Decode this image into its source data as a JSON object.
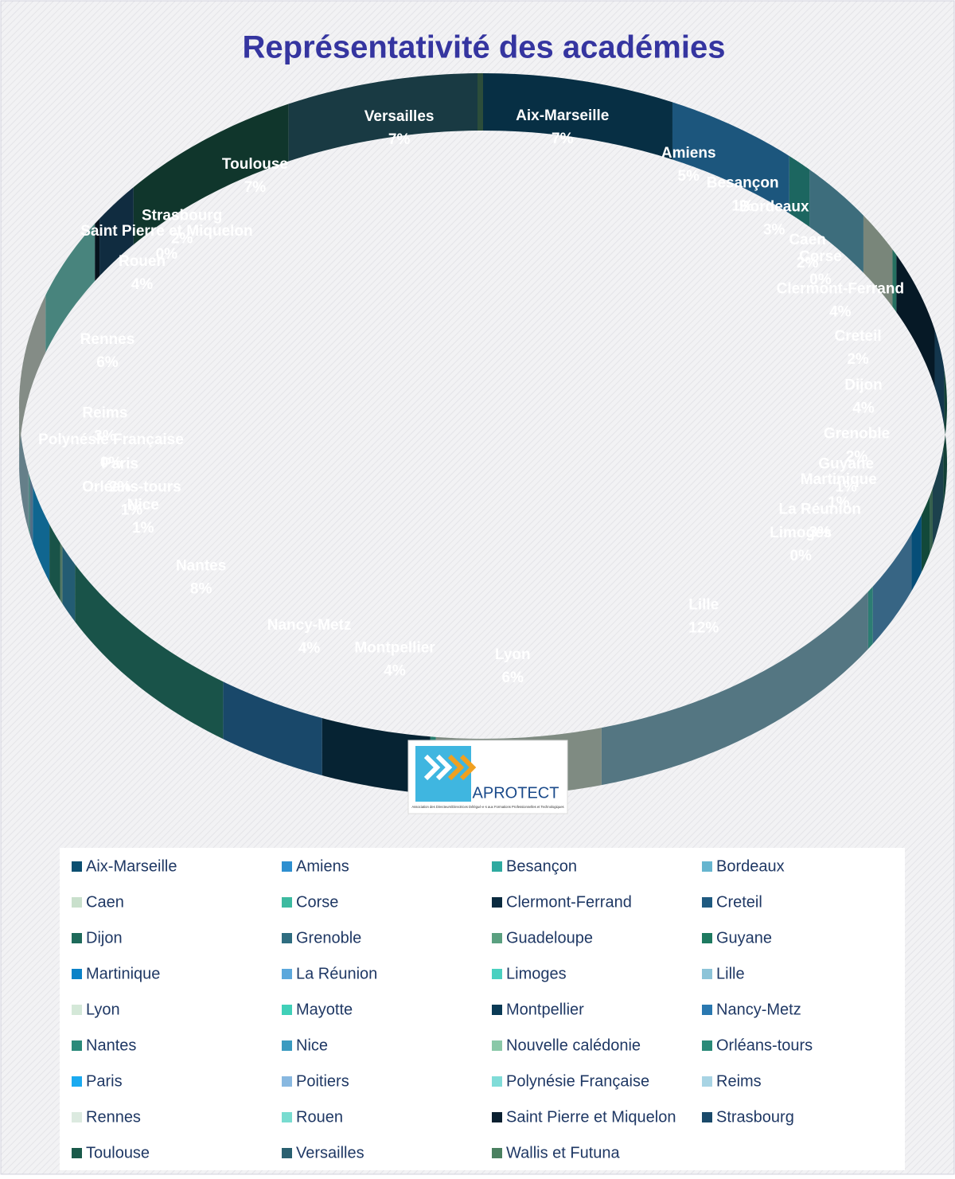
{
  "chart_data": {
    "type": "pie",
    "title": "Représentativité des académies",
    "categories": [
      "Aix-Marseille",
      "Amiens",
      "Besançon",
      "Bordeaux",
      "Caen",
      "Corse",
      "Clermont-Ferrand",
      "Creteil",
      "Dijon",
      "Grenoble",
      "Guadeloupe",
      "Guyane",
      "Martinique",
      "La Réunion",
      "Limoges",
      "Lille",
      "Lyon",
      "Mayotte",
      "Montpellier",
      "Nancy-Metz",
      "Nantes",
      "Nice",
      "Nouvelle calédonie",
      "Orléans-tours",
      "Paris",
      "Poitiers",
      "Polynésie Française",
      "Reims",
      "Rennes",
      "Rouen",
      "Saint Pierre et Miquelon",
      "Strasbourg",
      "Toulouse",
      "Versailles",
      "Wallis et Futuna"
    ],
    "values": [
      7,
      5,
      1,
      3,
      2,
      0.3,
      4,
      2,
      4,
      2,
      0.4,
      1,
      1,
      3,
      0.3,
      12,
      6,
      0.2,
      4,
      4,
      8,
      1,
      0.2,
      1,
      2,
      0.4,
      0.3,
      3,
      6,
      4,
      0.3,
      2,
      7,
      7,
      0.2
    ],
    "value_labels": [
      "7%",
      "5%",
      "1%",
      "3%",
      "2%",
      "0%",
      "4%",
      "2%",
      "4%",
      "2%",
      null,
      "1%",
      "1%",
      "3%",
      "0%",
      "12%",
      "6%",
      null,
      "4%",
      "4%",
      "8%",
      "1%",
      null,
      "1%",
      "2%",
      null,
      "0%",
      "3%",
      "6%",
      "4%",
      "0%",
      "2%",
      "7%",
      "7%",
      null
    ],
    "colors": [
      "#0b4f71",
      "#2e8fd0",
      "#2eaaa0",
      "#66b5cf",
      "#c9e0cc",
      "#3dbaa0",
      "#0a2a3f",
      "#1f5a80",
      "#1e6a5a",
      "#2f6d80",
      "#5aa080",
      "#1e7a60",
      "#0a82c8",
      "#5ca8dc",
      "#4ad0c0",
      "#8cc4d8",
      "#d4e8d8",
      "#40d0b8",
      "#0a3a55",
      "#2a78b0",
      "#2a8a7a",
      "#3a9ac0",
      "#8ac8a8",
      "#2a8a78",
      "#1aaaf0",
      "#88b8e0",
      "#80dcd8",
      "#a8d4e4",
      "#dceae0",
      "#78dcd0",
      "#0a2030",
      "#1a4a6a",
      "#1a5a4a",
      "#2a6070",
      "#4a8060"
    ],
    "legend": "bottom"
  },
  "logo": {
    "text": "APROTECT",
    "subtitle": "Association des Directeurs/Directrices Délégué·e·s aux Formations Professionnelles et Technologiques"
  }
}
